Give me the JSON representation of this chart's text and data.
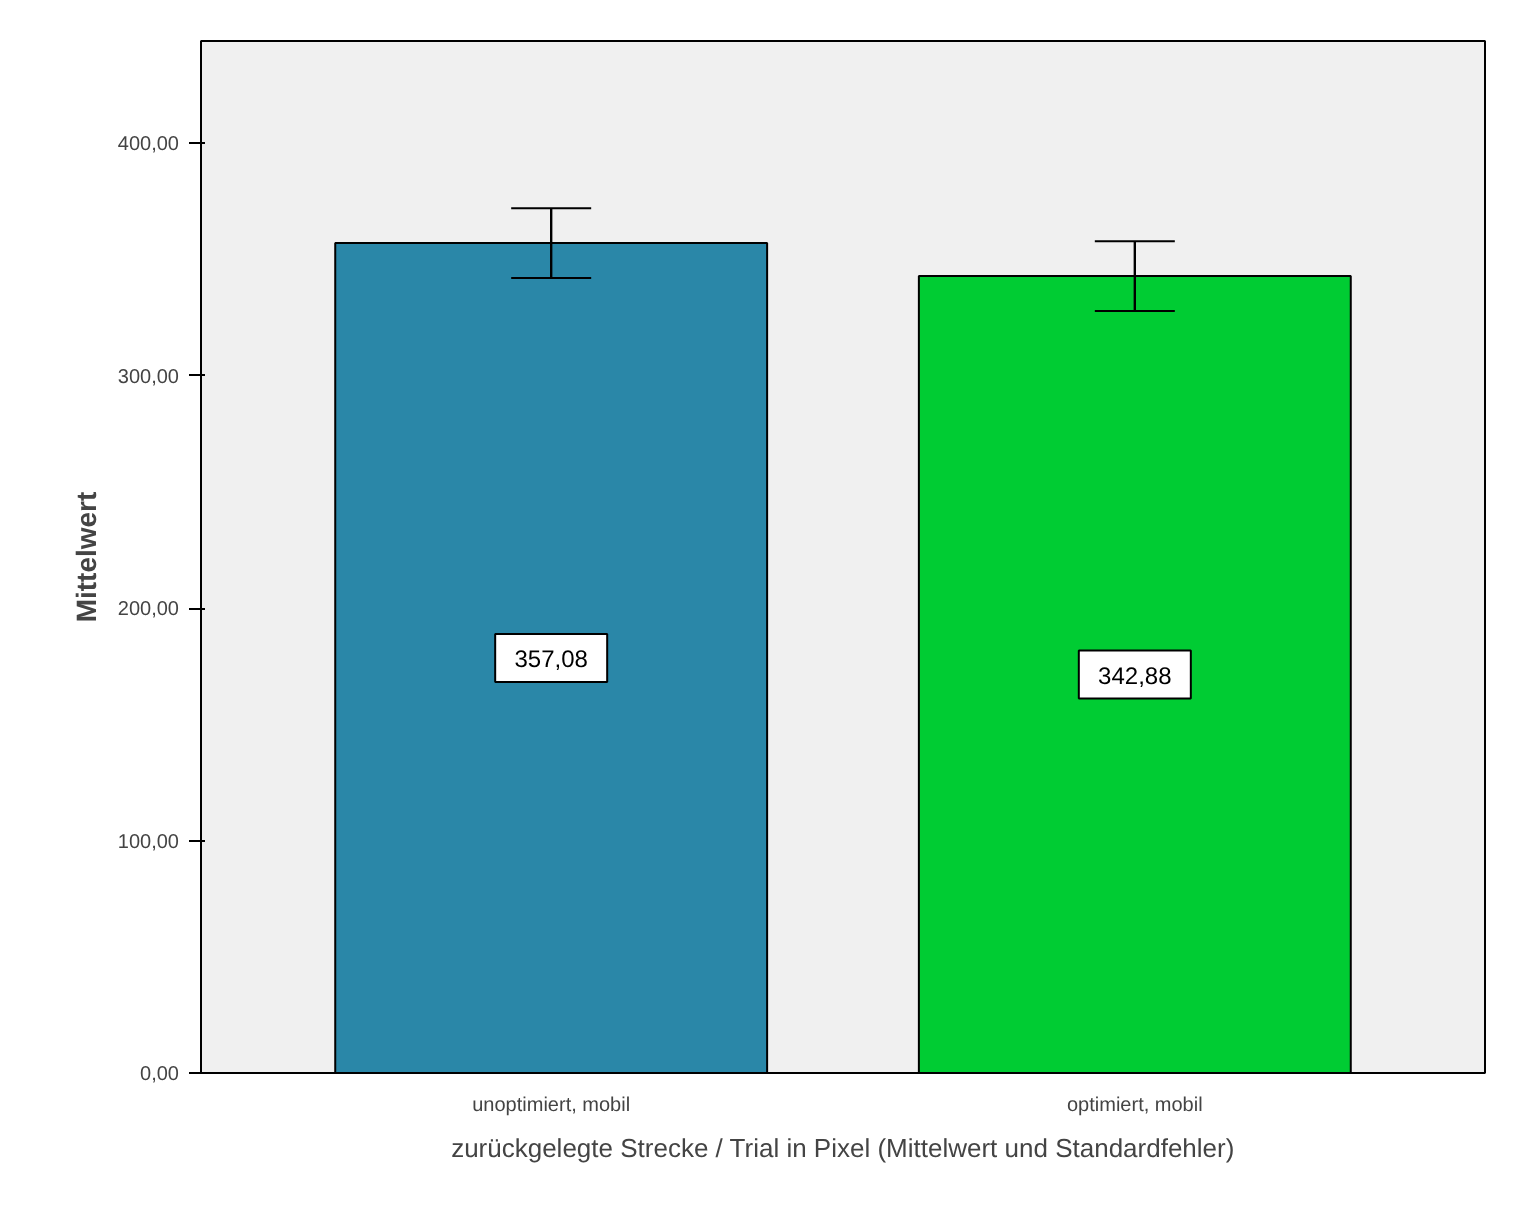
{
  "chart_data": {
    "type": "bar",
    "xlabel": "zurückgelegte Strecke / Trial in Pixel (Mittelwert und Standardfehler)",
    "ylabel": "Mittelwert",
    "categories": [
      "unoptimiert, mobil",
      "optimiert, mobil"
    ],
    "values": [
      357.08,
      342.88
    ],
    "colors": [
      "#2a87a8",
      "#00cc33"
    ],
    "errors": [
      15,
      15
    ],
    "value_labels": [
      "357,08",
      "342,88"
    ],
    "ylim": [
      0,
      444
    ],
    "yticks": [
      {
        "value": 0,
        "label": "0,00"
      },
      {
        "value": 100,
        "label": "100,00"
      },
      {
        "value": 200,
        "label": "200,00"
      },
      {
        "value": 300,
        "label": "300,00"
      },
      {
        "value": 400,
        "label": "400,00"
      }
    ],
    "grid": false
  }
}
